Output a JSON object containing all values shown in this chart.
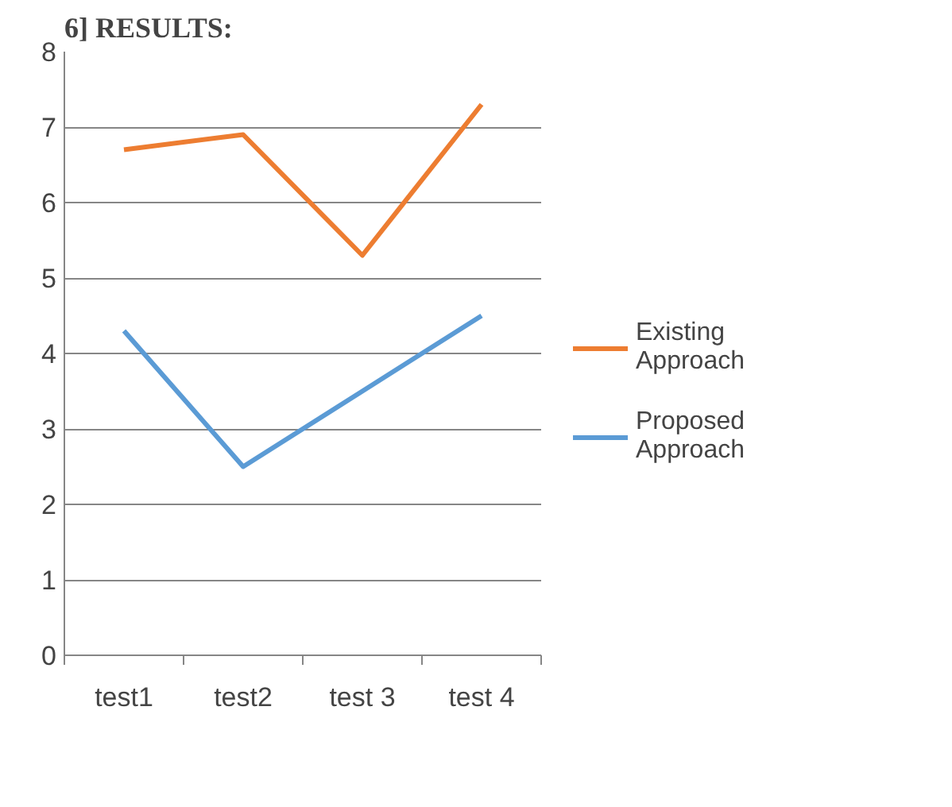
{
  "chart_data": {
    "type": "line",
    "title": "6] RESULTS:",
    "categories": [
      "test1",
      "test2",
      "test 3",
      "test 4"
    ],
    "series": [
      {
        "name": "Existing Approach",
        "color": "#ed7d31",
        "values": [
          6.7,
          6.9,
          5.3,
          7.3
        ]
      },
      {
        "name": "Proposed Approach",
        "color": "#5b9bd5",
        "values": [
          4.3,
          2.5,
          3.5,
          4.5
        ]
      }
    ],
    "ylim": [
      0,
      8
    ],
    "yticks": [
      0,
      1,
      2,
      3,
      4,
      5,
      6,
      7,
      8
    ],
    "grid": "y",
    "legend": "right",
    "marker": "none",
    "line_style": "solid"
  }
}
